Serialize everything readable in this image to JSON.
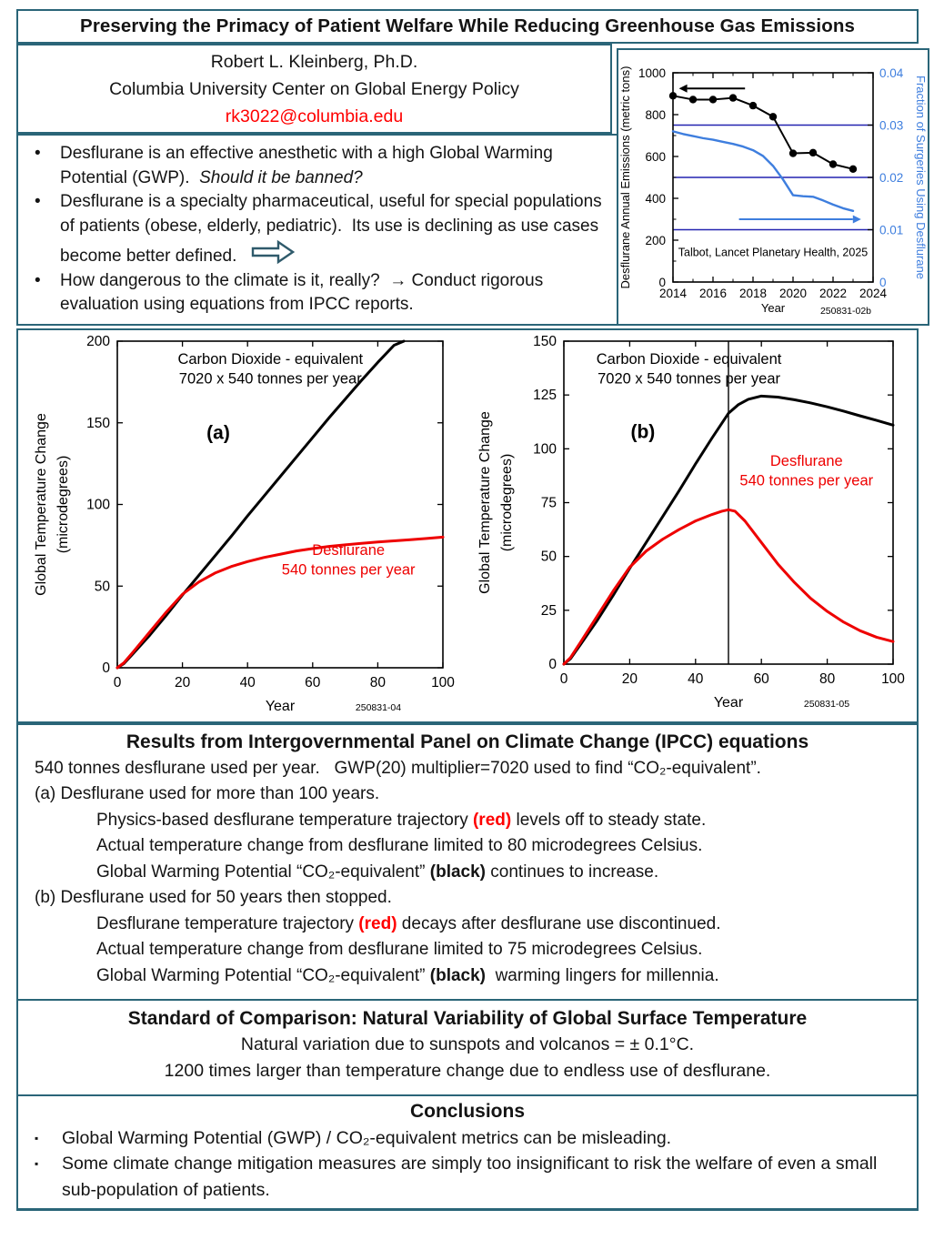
{
  "title": "Preserving the Primacy of Patient Welfare While Reducing Greenhouse Gas Emissions",
  "author": {
    "name": "Robert L. Kleinberg, Ph.D.",
    "affiliation": "Columbia University Center on Global Energy Policy",
    "email": "rk3022@columbia.edu"
  },
  "intro_bullets": [
    {
      "segments": [
        {
          "t": "Desflurane is an effective anesthetic with a high Global Warming Potential (GWP).  "
        },
        {
          "t": "Should it be banned?",
          "style": "italic"
        }
      ]
    },
    {
      "segments": [
        {
          "t": "Desflurane is a specialty pharmaceutical, useful for special populations of patients (obese, elderly, pediatric).  Its use is declining as use cases become better defined."
        }
      ]
    },
    {
      "segments": [
        {
          "t": "How dangerous to the climate is it, really?  → Conduct rigorous evaluation using equations from IPCC reports."
        }
      ]
    }
  ],
  "results": {
    "heading": "Results from Intergovernmental Panel on Climate Change (IPCC) equations",
    "lines": [
      {
        "segments": [
          {
            "t": "540 tonnes desflurane used per year.   GWP(20) multiplier=7020 used to find “CO₂-equivalent”."
          }
        ]
      },
      {
        "segments": [
          {
            "t": "(a) Desflurane used for more than 100 years."
          }
        ]
      },
      {
        "segments": [
          {
            "t": "Physics-based desflurane temperature trajectory "
          },
          {
            "t": "(red)",
            "style": "red"
          },
          {
            "t": " levels off to steady state."
          }
        ]
      },
      {
        "segments": [
          {
            "t": "Actual temperature change from desflurane limited to 80 microdegrees Celsius."
          }
        ]
      },
      {
        "segments": [
          {
            "t": "Global Warming Potential “CO₂-equivalent” "
          },
          {
            "t": "(black)",
            "style": "bold"
          },
          {
            "t": " continues to increase."
          }
        ]
      },
      {
        "segments": [
          {
            "t": "(b) Desflurane used for 50 years then stopped."
          }
        ]
      },
      {
        "segments": [
          {
            "t": "Desflurane temperature trajectory "
          },
          {
            "t": "(red)",
            "style": "red"
          },
          {
            "t": " decays after desflurane use discontinued."
          }
        ]
      },
      {
        "segments": [
          {
            "t": "Actual temperature change from desflurane limited to 75 microdegrees Celsius."
          }
        ]
      },
      {
        "segments": [
          {
            "t": "Global Warming Potential “CO₂-equivalent” "
          },
          {
            "t": "(black)",
            "style": "bold"
          },
          {
            "t": "  warming lingers for millennia."
          }
        ]
      }
    ]
  },
  "standard": {
    "heading": "Standard of Comparison: Natural Variability of Global Surface Temperature",
    "lines": [
      "Natural variation due to sunspots and volcanos = ± 0.1°C.",
      "1200 times larger than temperature change due to endless use of desflurane."
    ]
  },
  "conclusions": {
    "heading": "Conclusions",
    "bullets": [
      {
        "segments": [
          {
            "t": "Global Warming Potential (GWP) / CO₂-equivalent metrics can be misleading."
          }
        ]
      },
      {
        "segments": [
          {
            "t": "Some climate change mitigation measures are simply too insignificant to risk the welfare of even a small sub-population of patients."
          }
        ]
      }
    ]
  },
  "colors": {
    "box_border": "#2a6578",
    "accent_red": "#ff0000",
    "series_blue": "#3e7ede",
    "gridline_navy": "#2323b0",
    "arrow_outline": "#2f5a6b"
  },
  "chart_data": [
    {
      "type": "line",
      "fig_id": "250831-02b",
      "xlabel": "Year",
      "xlim": [
        2014,
        2024
      ],
      "xticks": [
        2014,
        2016,
        2018,
        2020,
        2022,
        2024
      ],
      "left": {
        "label": "Desflurane Annual Emissions (metric tons)",
        "lim": [
          0,
          1000
        ],
        "ticks": [
          0,
          200,
          400,
          600,
          800,
          1000
        ],
        "color": "#000000"
      },
      "right": {
        "label": "Fraction of Surgeries Using Desflurane",
        "lim": [
          0,
          0.04
        ],
        "ticks": [
          0,
          0.01,
          0.02,
          0.03,
          0.04
        ],
        "color": "#3e7ede"
      },
      "hlines_right": {
        "values": [
          0.01,
          0.02,
          0.03
        ],
        "color": "#2323b0"
      },
      "series": [
        {
          "name": "desflurane-annual-emissions",
          "axis": "left",
          "color": "#000000",
          "width": 2,
          "marker": true,
          "x": [
            2014,
            2015,
            2016,
            2017,
            2018,
            2019,
            2020,
            2021,
            2022,
            2023
          ],
          "y": [
            890,
            872,
            872,
            880,
            843,
            790,
            615,
            618,
            563,
            540
          ]
        },
        {
          "name": "fraction-of-surgeries-using-desflurane",
          "axis": "right",
          "color": "#3e7ede",
          "width": 2.4,
          "x": [
            2014,
            2014.5,
            2015,
            2015.5,
            2016,
            2016.5,
            2017,
            2017.5,
            2018,
            2018.5,
            2019,
            2019.5,
            2020,
            2020.5,
            2021,
            2021.5,
            2022,
            2022.5,
            2023
          ],
          "y": [
            0.0288,
            0.0283,
            0.0279,
            0.0275,
            0.0272,
            0.0268,
            0.0264,
            0.0259,
            0.0252,
            0.0241,
            0.0222,
            0.0196,
            0.0166,
            0.0164,
            0.0163,
            0.0156,
            0.0148,
            0.0141,
            0.0136
          ]
        }
      ],
      "annotations": [
        {
          "text": "Talbot, Lancet Planetary Health, 2025",
          "fx": 0.5,
          "fy": 0.875,
          "size": 12.5,
          "color": "#000000"
        }
      ],
      "arrows": [
        {
          "fx1": 0.36,
          "fy1": 0.075,
          "fx2": 0.03,
          "fy2": 0.075,
          "color": "#000000"
        },
        {
          "fx1": 0.33,
          "fy1": 0.7,
          "fx2": 0.94,
          "fy2": 0.7,
          "color": "#3e7ede"
        }
      ]
    },
    {
      "type": "line",
      "fig_id": "250831-04",
      "xlabel": "Year",
      "xlim": [
        0,
        100
      ],
      "xticks": [
        0,
        20,
        40,
        60,
        80,
        100
      ],
      "left": {
        "label": "Global Temperature Change\n(microdegrees)",
        "lim": [
          0,
          200
        ],
        "ticks": [
          0,
          50,
          100,
          150,
          200
        ],
        "color": "#000000"
      },
      "series": [
        {
          "name": "co2-equivalent",
          "color": "#000000",
          "width": 3,
          "x": [
            0,
            2,
            5,
            10,
            15,
            20,
            25,
            30,
            35,
            40,
            45,
            50,
            55,
            60,
            65,
            70,
            75,
            80,
            85,
            88
          ],
          "y": [
            0,
            2.5,
            9,
            20,
            32,
            44.5,
            56.5,
            68.5,
            80.5,
            93,
            105,
            117,
            129,
            141,
            153,
            164.5,
            176,
            187,
            197.5,
            200
          ]
        },
        {
          "name": "desflurane",
          "color": "#ee0000",
          "width": 3,
          "x": [
            0,
            2,
            5,
            10,
            15,
            20,
            25,
            30,
            35,
            40,
            45,
            50,
            55,
            60,
            65,
            70,
            75,
            80,
            85,
            90,
            95,
            100
          ],
          "y": [
            0,
            3,
            10,
            22,
            34,
            45,
            52.5,
            58,
            62,
            65,
            67.5,
            69.5,
            71.5,
            73,
            74.3,
            75.3,
            76.2,
            77,
            77.7,
            78.4,
            79.2,
            80
          ]
        }
      ],
      "annotations": [
        {
          "text": "Carbon Dioxide - equivalent\n7020 x 540 tonnes per year",
          "fx": 0.47,
          "fy": 0.07,
          "size": 16.5,
          "color": "#000000"
        },
        {
          "text": "(a)",
          "fx": 0.31,
          "fy": 0.3,
          "size": 21,
          "bold": true,
          "color": "#000000"
        },
        {
          "text": "Desflurane\n540 tonnes per year",
          "fx": 0.71,
          "fy": 0.655,
          "size": 16.5,
          "color": "#ee0000"
        }
      ]
    },
    {
      "type": "line",
      "fig_id": "250831-05",
      "xlabel": "Year",
      "xlim": [
        0,
        100
      ],
      "xticks": [
        0,
        20,
        40,
        60,
        80,
        100
      ],
      "left": {
        "label": "Global Temperature Change\n(microdegrees)",
        "lim": [
          0,
          150
        ],
        "ticks": [
          0,
          25,
          50,
          75,
          100,
          125,
          150
        ],
        "color": "#000000"
      },
      "vlines": {
        "values": [
          50
        ],
        "color": "#000000"
      },
      "series": [
        {
          "name": "co2-equivalent",
          "color": "#000000",
          "width": 3,
          "x": [
            0,
            2,
            5,
            10,
            15,
            20,
            25,
            30,
            35,
            40,
            45,
            50,
            53,
            56,
            60,
            65,
            70,
            75,
            80,
            85,
            90,
            95,
            100
          ],
          "y": [
            0,
            2.5,
            9,
            20,
            32,
            44.5,
            56.5,
            68.5,
            80.5,
            93,
            105,
            116.5,
            120.5,
            123,
            124.5,
            124,
            122.8,
            121.3,
            119.5,
            117.5,
            115.3,
            113.2,
            111
          ]
        },
        {
          "name": "desflurane",
          "color": "#ee0000",
          "width": 3,
          "x": [
            0,
            2,
            5,
            10,
            15,
            20,
            25,
            30,
            35,
            40,
            45,
            48,
            50,
            52,
            55,
            60,
            65,
            70,
            75,
            80,
            85,
            90,
            95,
            100
          ],
          "y": [
            0,
            3,
            10,
            22,
            34,
            45,
            52.5,
            58,
            62.5,
            66.5,
            69.5,
            71,
            71.7,
            71,
            66.5,
            56.5,
            46.5,
            38,
            30.5,
            24.5,
            19.5,
            15.5,
            12.5,
            10.5
          ]
        }
      ],
      "annotations": [
        {
          "text": "Carbon Dioxide - equivalent\n7020 x 540 tonnes per year",
          "fx": 0.38,
          "fy": 0.07,
          "size": 16.5,
          "color": "#000000"
        },
        {
          "text": "(b)",
          "fx": 0.24,
          "fy": 0.3,
          "size": 21,
          "bold": true,
          "color": "#000000"
        },
        {
          "text": "Desflurane\n540 tonnes per year",
          "fx": 0.737,
          "fy": 0.386,
          "size": 16.5,
          "color": "#ee0000"
        }
      ]
    }
  ]
}
